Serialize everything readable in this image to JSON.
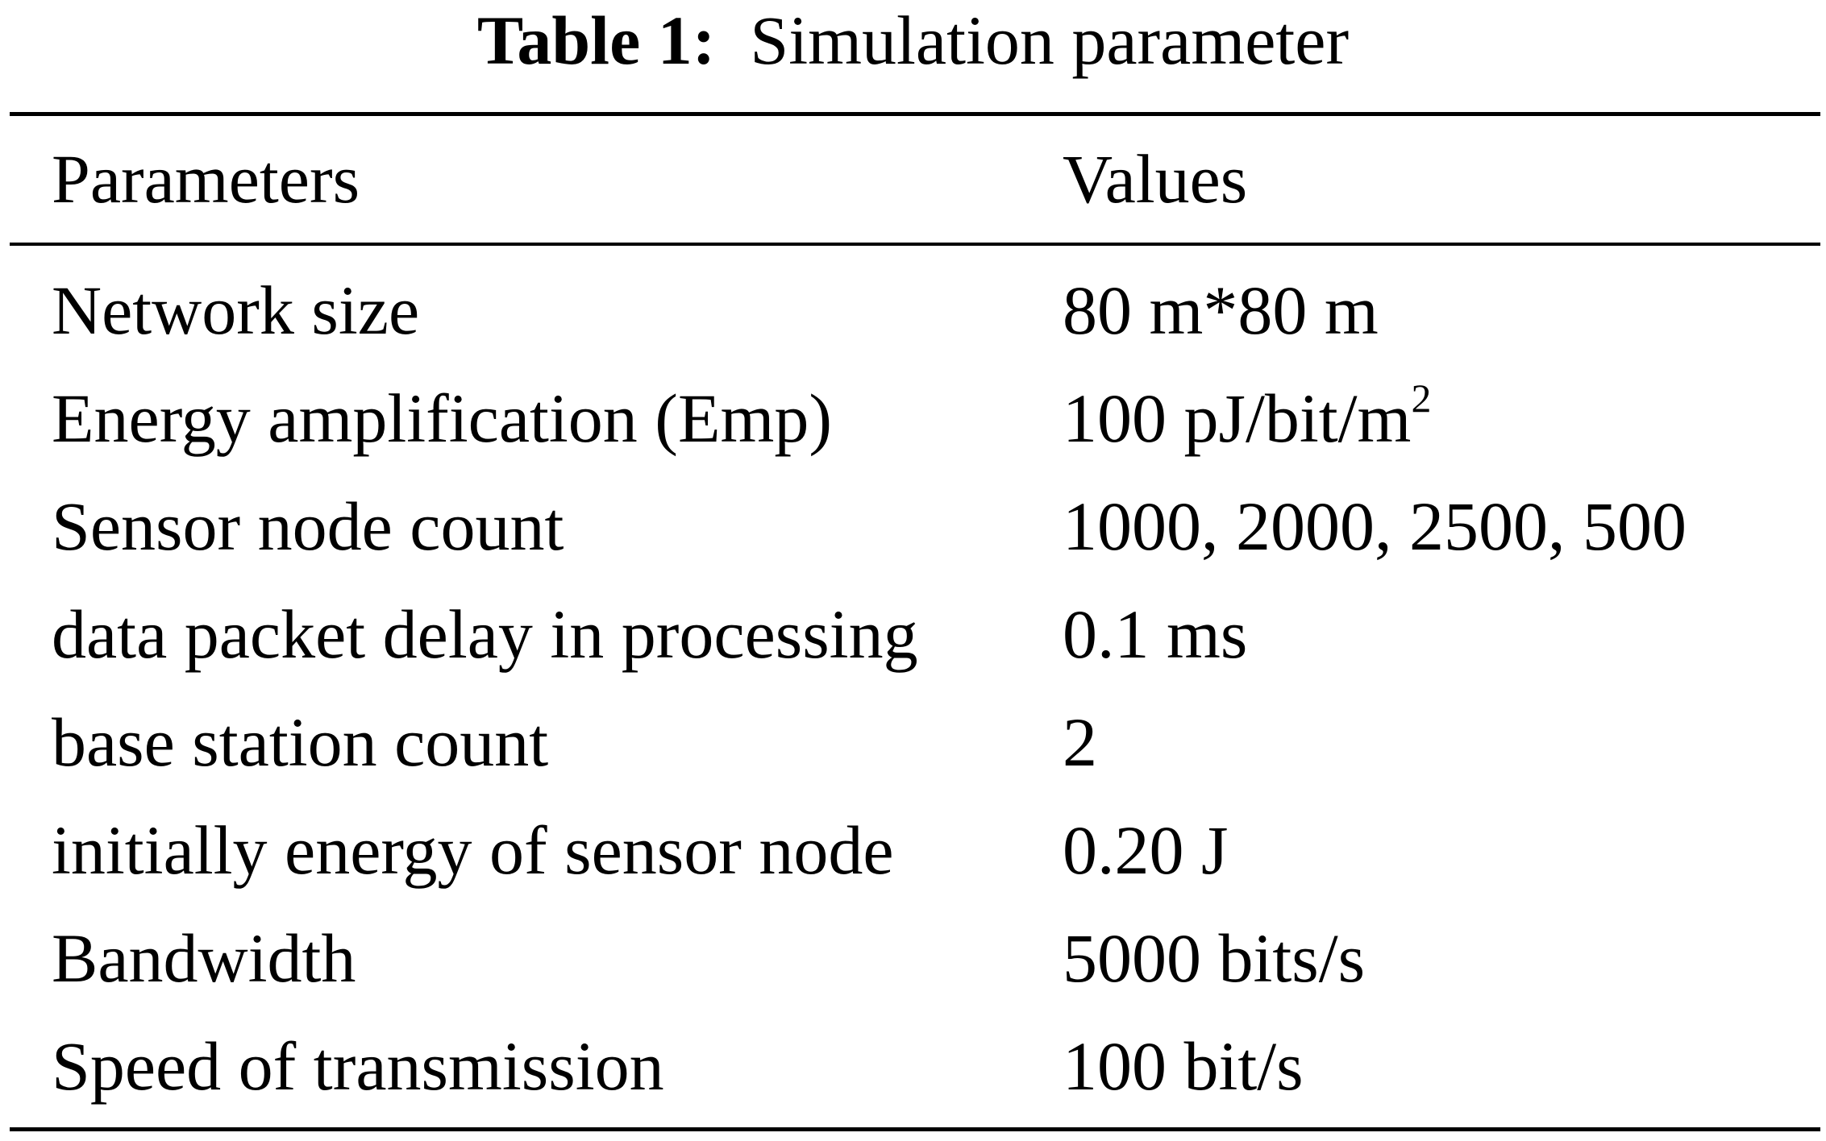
{
  "caption": {
    "label": "Table 1:",
    "title": "Simulation parameter"
  },
  "table": {
    "headers": [
      "Parameters",
      "Values"
    ],
    "rows": [
      {
        "parameter": "Network size",
        "value": "80 m*80 m"
      },
      {
        "parameter": "Energy amplification (Emp)",
        "value": "100 pJ/bit/m",
        "value_superscript": "2"
      },
      {
        "parameter": "Sensor node count",
        "value": "1000, 2000, 2500, 500"
      },
      {
        "parameter": "data packet delay in processing",
        "value": "0.1 ms"
      },
      {
        "parameter": "base station count",
        "value": "2"
      },
      {
        "parameter": "initially energy of sensor node",
        "value": "0.20 J"
      },
      {
        "parameter": "Bandwidth",
        "value": "5000 bits/s"
      },
      {
        "parameter": "Speed of transmission",
        "value": "100 bit/s"
      }
    ]
  }
}
